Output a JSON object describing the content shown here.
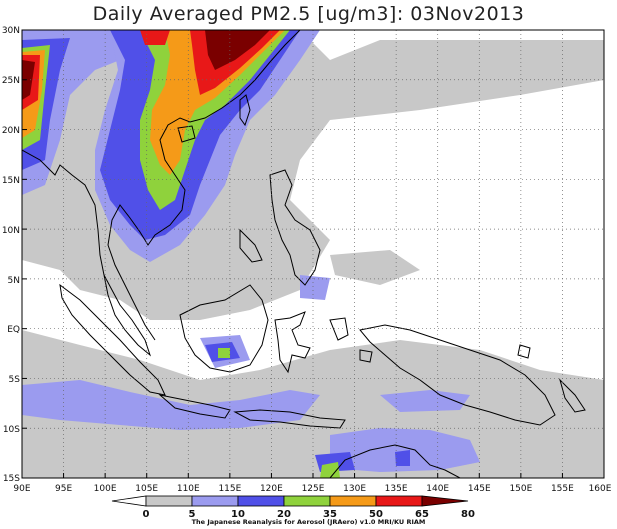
{
  "title": "Daily Averaged PM2.5 [ug/m3]: 03Nov2013",
  "credit": "The Japanese Reanalysis for Aerosol (JRAero) v1.0 MRI/KU RIAM",
  "lat_ticks": [
    "30N",
    "25N",
    "20N",
    "15N",
    "10N",
    "5N",
    "EQ",
    "5S",
    "10S",
    "15S"
  ],
  "lon_ticks": [
    "90E",
    "95E",
    "100E",
    "105E",
    "110E",
    "115E",
    "120E",
    "125E",
    "130E",
    "135E",
    "140E",
    "145E",
    "150E",
    "155E",
    "160E"
  ],
  "colorbar": {
    "labels": [
      "0",
      "5",
      "10",
      "20",
      "35",
      "50",
      "65",
      "80"
    ],
    "colors": {
      "c0_5": "#ffffff",
      "c5_10": "#c8c8c8",
      "c10_20": "#9b9bef",
      "c20_35": "#5050e8",
      "c35_50": "#8fd23c",
      "c50_65": "#f59a18",
      "c65_80": "#e81818",
      "c80": "#7a0000"
    }
  }
}
